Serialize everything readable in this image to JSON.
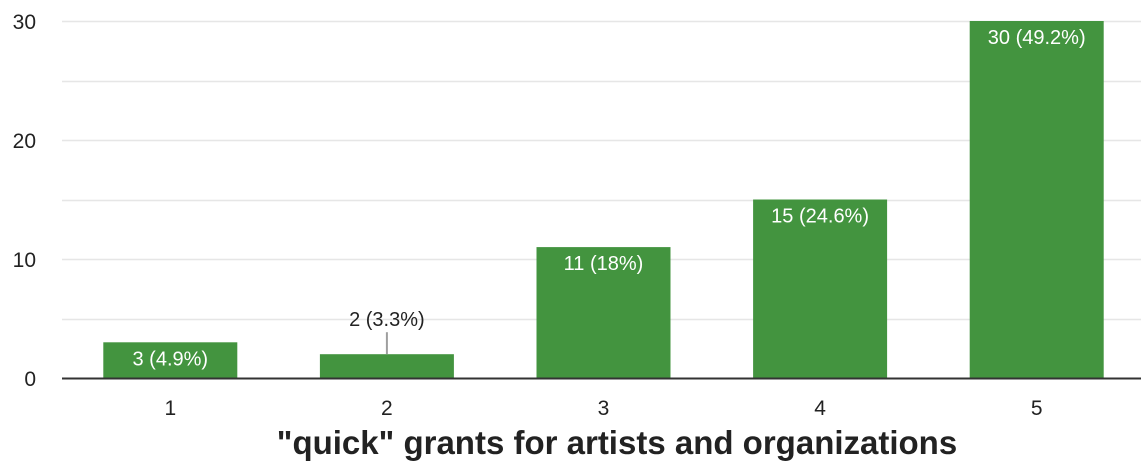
{
  "chart_data": {
    "type": "bar",
    "title": "",
    "xlabel": "\"quick\" grants for artists and organizations",
    "ylabel": "",
    "categories": [
      "1",
      "2",
      "3",
      "4",
      "5"
    ],
    "values": [
      3,
      2,
      11,
      15,
      30
    ],
    "data_labels": [
      "3 (4.9%)",
      "2 (3.3%)",
      "11 (18%)",
      "15 (24.6%)",
      "30 (49.2%)"
    ],
    "ylim": [
      0,
      30
    ],
    "yticks": [
      0,
      10,
      20,
      30
    ],
    "grid": true,
    "legend": "none",
    "bar_color": "#43943f",
    "grid_color": "#e6e6e6",
    "axis_color": "#333333"
  }
}
